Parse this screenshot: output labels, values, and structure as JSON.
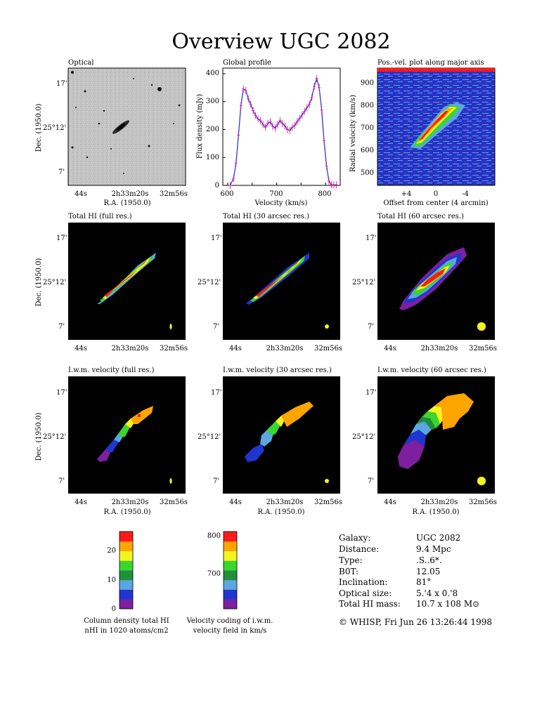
{
  "title": "Overview UGC 2082",
  "colors": {
    "ramp": [
      "#7e1fa0",
      "#1f35cf",
      "#5aa6e0",
      "#1f8f3a",
      "#39d630",
      "#f5f51e",
      "#ffa500",
      "#ff1a1a"
    ],
    "profile_line": "#2b3bd6",
    "profile_err": "#e0189e",
    "beam": "#f5f51e",
    "panel_bg": "#000000"
  },
  "panels": {
    "optical": {
      "label": "Optical",
      "ylabel": "Dec. (1950.0)",
      "xlabel": "R.A. (1950.0)",
      "yticks": [
        "17'",
        "25°12'",
        "7'"
      ],
      "xticks": [
        "44s",
        "2h33m20s",
        "32m56s"
      ]
    },
    "profile": {
      "label": "Global profile",
      "xlabel": "Velocity (km/s)",
      "ylabel": "Flux density (mJy)",
      "xticks": [
        "600",
        "700",
        "800"
      ],
      "yticks": [
        "0",
        "100",
        "200",
        "300",
        "400"
      ]
    },
    "pv": {
      "label": "Pos.-vel. plot along major axis",
      "xlabel": "Offset from center (4 arcmin)",
      "ylabel": "Radial velocity (km/s)",
      "xticks": [
        "+4",
        "0",
        "-4"
      ],
      "yticks": [
        "500",
        "600",
        "700",
        "800",
        "900"
      ]
    },
    "hi_full": {
      "label": "Total HI (full res.)"
    },
    "hi_30": {
      "label": "Total HI (30 arcsec res.)"
    },
    "hi_60": {
      "label": "Total HI (60 arcsec res.)"
    },
    "vel_full": {
      "label": "I.w.m. velocity (full res.)"
    },
    "vel_30": {
      "label": "I.w.m. velocity (30 arcsec res.)"
    },
    "vel_60": {
      "label": "I.w.m. velocity (60 arcsec res.)"
    },
    "map_ylabel": "Dec. (1950.0)",
    "map_xlabel": "R.A. (1950.0)",
    "map_yticks": [
      "17'",
      "25°12'",
      "7'"
    ],
    "map_xticks": [
      "44s",
      "2h33m20s",
      "32m56s"
    ]
  },
  "colorbars": {
    "density": {
      "ticks": [
        "0",
        "10",
        "20"
      ],
      "caption1": "Column density total HI",
      "caption2": "nHI in 1020 atoms/cm2"
    },
    "velocity": {
      "ticks": [
        "700",
        "800"
      ],
      "caption1": "Velocity coding of i.w.m.",
      "caption2": "velocity field in km/s"
    }
  },
  "info": {
    "rows": [
      {
        "key": "Galaxy:",
        "value": "UGC 2082"
      },
      {
        "key": "Distance:",
        "value": "9.4 Mpc"
      },
      {
        "key": "Type:",
        "value": ".S..6*."
      },
      {
        "key": "B0T:",
        "value": "12.05"
      },
      {
        "key": "Inclination:",
        "value": "81°"
      },
      {
        "key": "Optical size:",
        "value": "5.'4 x 0.'8"
      },
      {
        "key": "Total HI mass:",
        "value": "10.7 x 108 M⊙"
      }
    ],
    "footer": "© WHISP, Fri Jun 26 13:26:44 1998"
  },
  "chart_data": [
    {
      "type": "line",
      "title": "Global profile",
      "xlabel": "Velocity (km/s)",
      "ylabel": "Flux density (mJy)",
      "xlim": [
        590,
        830
      ],
      "ylim": [
        0,
        420
      ],
      "series": [
        {
          "x": [
            605,
            612,
            617,
            622,
            627,
            632,
            637,
            642,
            647,
            652,
            657,
            662,
            667,
            672,
            677,
            682,
            687,
            692,
            697,
            702,
            707,
            712,
            717,
            722,
            727,
            732,
            737,
            742,
            747,
            752,
            757,
            762,
            767,
            772,
            777,
            782,
            787,
            792,
            797,
            802,
            807,
            812,
            817,
            822
          ],
          "y": [
            0,
            25,
            80,
            180,
            285,
            345,
            340,
            310,
            290,
            268,
            250,
            238,
            232,
            218,
            208,
            222,
            228,
            212,
            205,
            218,
            232,
            222,
            212,
            200,
            197,
            208,
            215,
            228,
            240,
            252,
            265,
            278,
            290,
            315,
            355,
            383,
            350,
            270,
            160,
            70,
            15,
            2,
            2,
            2
          ]
        }
      ]
    }
  ]
}
